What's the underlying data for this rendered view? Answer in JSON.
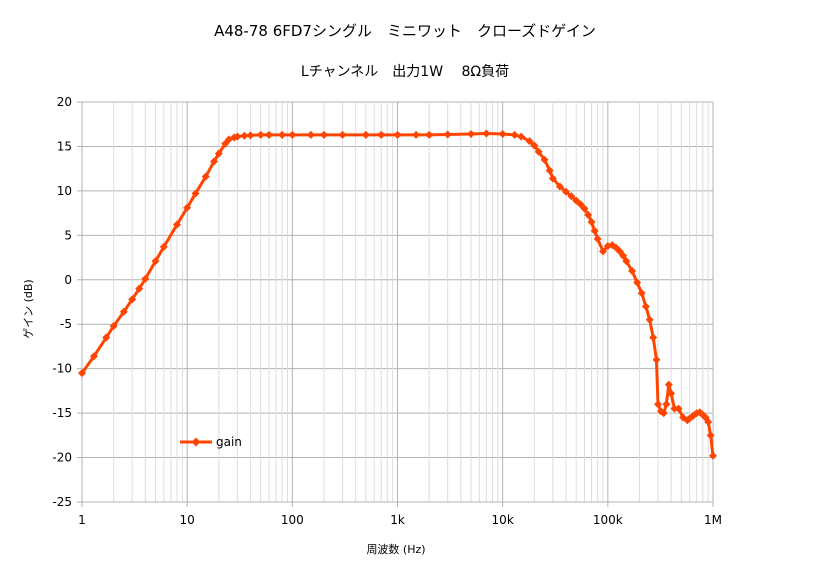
{
  "chart_data": {
    "type": "line",
    "title": "A48-78 6FD7シングル　ミニワット　クローズドゲイン",
    "subtitle": "Lチャンネル　出力1W　 8Ω負荷",
    "xlabel": "周波数 (Hz)",
    "ylabel": "ゲイン (dB)",
    "xscale": "log",
    "xlim": [
      1,
      1000000
    ],
    "ylim": [
      -25,
      20
    ],
    "grid": true,
    "legend_position": "lower-left",
    "x_tick_labels": [
      "1",
      "10",
      "100",
      "1k",
      "10k",
      "100k",
      "1M"
    ],
    "y_ticks": [
      20,
      15,
      10,
      5,
      0,
      -5,
      -10,
      -15,
      -20,
      -25
    ],
    "series": [
      {
        "name": "gain",
        "color": "#ff4500",
        "marker": "diamond",
        "x": [
          1,
          1.3,
          1.7,
          2,
          2.5,
          3,
          3.5,
          4,
          5,
          6,
          8,
          10,
          12,
          15,
          18,
          20,
          23,
          25,
          28,
          30,
          35,
          40,
          50,
          60,
          80,
          100,
          150,
          200,
          300,
          500,
          700,
          1000,
          1500,
          2000,
          3000,
          5000,
          7000,
          10000,
          13000,
          15000,
          18000,
          20000,
          22000,
          25000,
          28000,
          30000,
          35000,
          40000,
          45000,
          50000,
          55000,
          60000,
          65000,
          70000,
          75000,
          80000,
          90000,
          100000,
          110000,
          120000,
          130000,
          140000,
          150000,
          170000,
          190000,
          210000,
          230000,
          250000,
          270000,
          290000,
          300000,
          320000,
          340000,
          360000,
          380000,
          400000,
          430000,
          470000,
          520000,
          570000,
          600000,
          650000,
          700000,
          750000,
          800000,
          850000,
          900000,
          950000,
          1000000
        ],
        "y": [
          -10.5,
          -8.6,
          -6.5,
          -5.2,
          -3.6,
          -2.2,
          -1.0,
          0.1,
          2.1,
          3.7,
          6.2,
          8.1,
          9.7,
          11.6,
          13.3,
          14.2,
          15.3,
          15.8,
          16.0,
          16.1,
          16.2,
          16.25,
          16.3,
          16.3,
          16.3,
          16.3,
          16.3,
          16.3,
          16.3,
          16.3,
          16.3,
          16.3,
          16.3,
          16.3,
          16.35,
          16.4,
          16.45,
          16.4,
          16.3,
          16.1,
          15.6,
          15.1,
          14.4,
          13.5,
          12.3,
          11.4,
          10.5,
          9.9,
          9.4,
          8.9,
          8.5,
          8.0,
          7.3,
          6.5,
          5.5,
          4.6,
          3.2,
          3.8,
          3.9,
          3.6,
          3.2,
          2.7,
          2.1,
          1.0,
          -0.3,
          -1.5,
          -3.0,
          -4.5,
          -6.5,
          -9.0,
          -14.0,
          -14.8,
          -15.0,
          -14.0,
          -11.8,
          -12.8,
          -14.5,
          -14.5,
          -15.5,
          -15.8,
          -15.6,
          -15.3,
          -15.0,
          -14.9,
          -15.2,
          -15.5,
          -16.0,
          -17.5,
          -19.8
        ]
      }
    ]
  }
}
